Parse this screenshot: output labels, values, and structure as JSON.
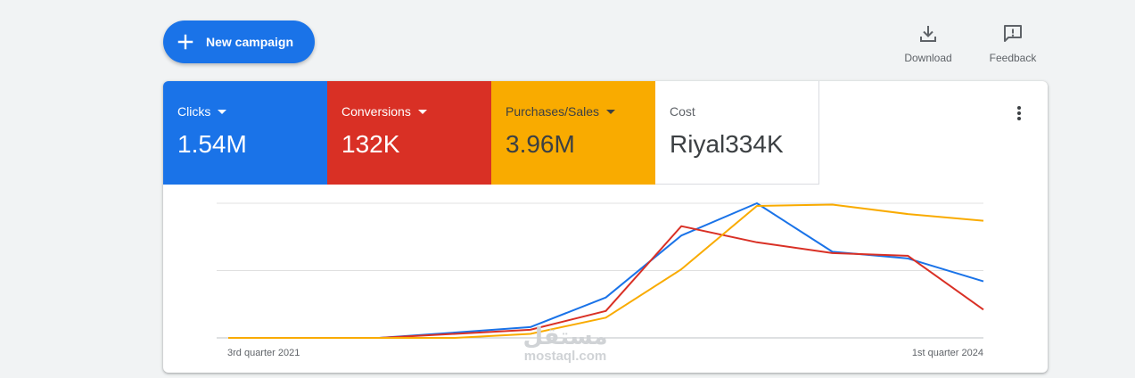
{
  "toolbar": {
    "new_campaign_label": "New campaign",
    "download_label": "Download",
    "feedback_label": "Feedback"
  },
  "metrics": [
    {
      "label": "Clicks",
      "value": "1.54M",
      "color": "#1a73e8"
    },
    {
      "label": "Conversions",
      "value": "132K",
      "color": "#d93025"
    },
    {
      "label": "Purchases/Sales",
      "value": "3.96M",
      "color": "#f9ab00"
    },
    {
      "label": "Cost",
      "value": "Riyal334K"
    }
  ],
  "icons": {
    "new_campaign": "plus-icon",
    "download": "download-icon",
    "feedback": "feedback-icon",
    "more": "more-vert-icon"
  },
  "watermark": {
    "arabic": "مستقل",
    "latin": "mostaql.com"
  },
  "chart_data": {
    "type": "line",
    "x_tick_labels": [
      "3rd quarter 2021",
      "1st quarter 2024"
    ],
    "y_range": [
      0,
      100
    ],
    "gridlines": 3,
    "series": [
      {
        "color": "#1a73e8",
        "values": [
          0,
          0,
          0,
          4,
          8,
          30,
          76,
          100,
          64,
          59,
          42
        ]
      },
      {
        "color": "#d93025",
        "values": [
          0,
          0,
          0,
          3,
          6,
          20,
          83,
          71,
          63,
          61,
          21
        ]
      },
      {
        "color": "#f9ab00",
        "values": [
          0,
          0,
          0,
          0,
          3,
          15,
          51,
          98,
          99,
          92,
          87
        ]
      }
    ]
  }
}
